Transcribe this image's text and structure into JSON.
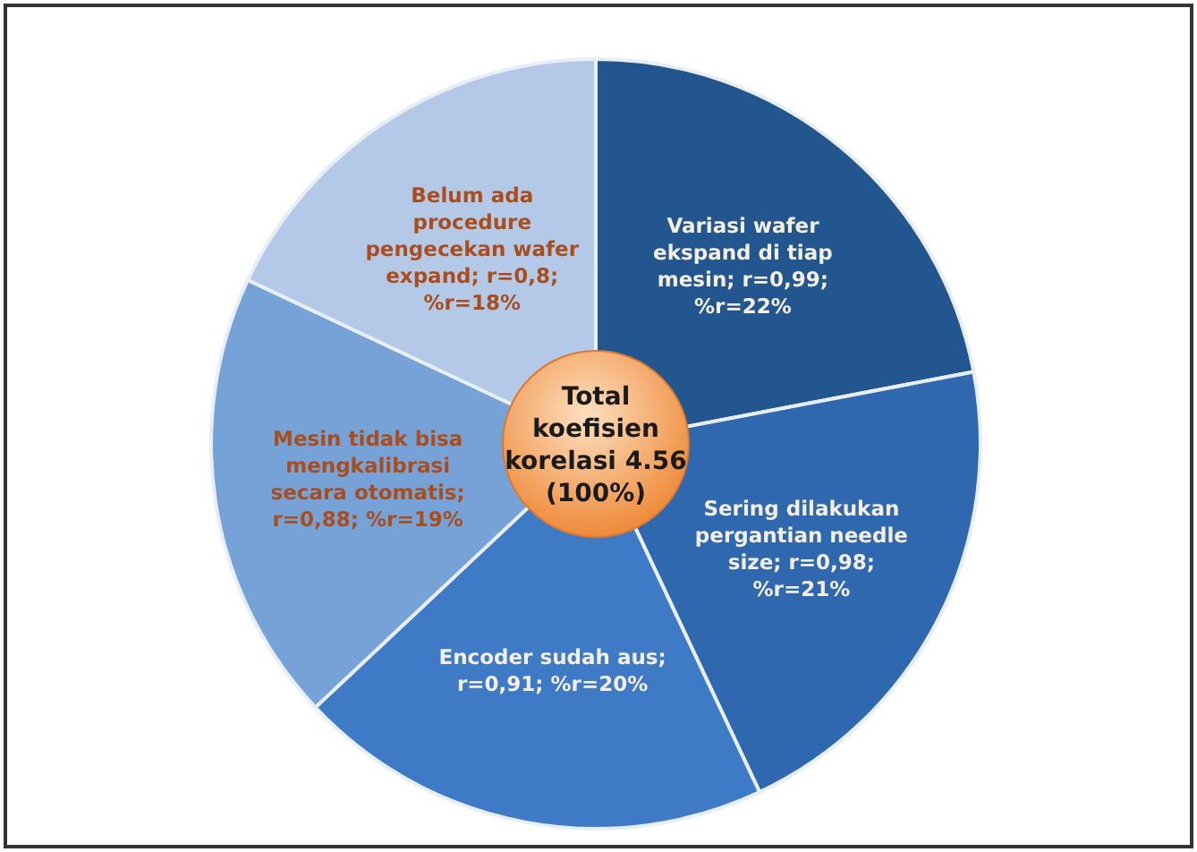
{
  "chart_data": {
    "type": "pie",
    "categories": [
      "Variasi wafer ekspand di tiap mesin; r=0,99; %r=22%",
      "Sering dilakukan pergantian needle size; r=0,98; %r=21%",
      "Encoder sudah aus; r=0,91; %r=20%",
      "Mesin tidak bisa mengkalibrasi secara otomatis; r=0,88; %r=19%",
      "Belum ada procedure pengecekan wafer expand; r=0,8; %r=18%"
    ],
    "values": [
      22,
      21,
      20,
      19,
      18
    ],
    "colors": [
      "#23558f",
      "#3068b0",
      "#3f7ac6",
      "#77a2d8",
      "#b4c9e8"
    ],
    "annotations": [
      "Total koefisien korelasi 4.56 (100%)"
    ]
  }
}
